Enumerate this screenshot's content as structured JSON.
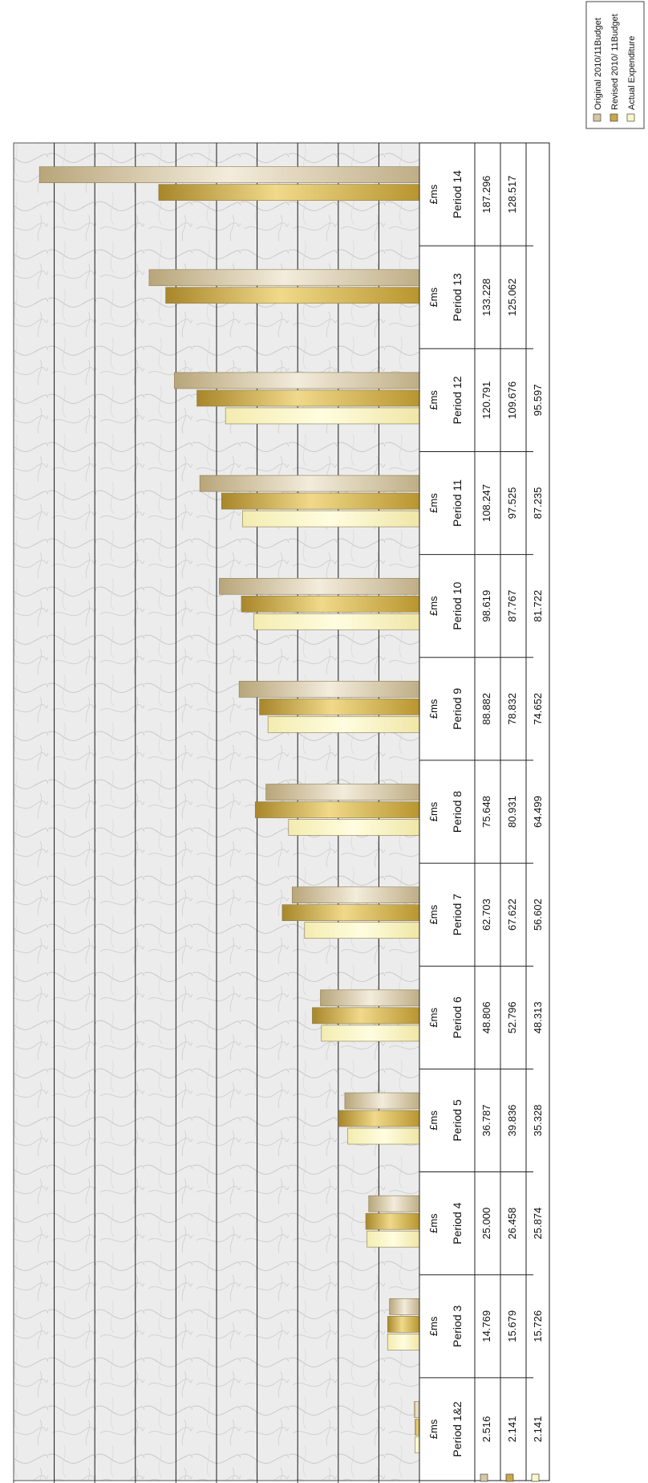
{
  "chart_data": {
    "type": "bar",
    "categories": [
      "Period 1&2",
      "Period 3",
      "Period 4",
      "Period 5",
      "Period 6",
      "Period 7",
      "Period 8",
      "Period 9",
      "Period 10",
      "Period 11",
      "Period 12",
      "Period 13",
      "Period 14"
    ],
    "unit_label": "£ms",
    "ylim": [
      0,
      200
    ],
    "y_ticks": [
      "0.000",
      "20.000",
      "40.000",
      "60.000",
      "80.000",
      "100.000",
      "120.000",
      "140.000",
      "160.000",
      "180.000",
      "200.000"
    ],
    "grid": true,
    "legend_position": "top-right",
    "series": [
      {
        "name": "Original 2010/11 Budget",
        "legend_label": "Original 2010/11Budget",
        "color": "#d7c7a1",
        "values": [
          2.516,
          14.769,
          25.0,
          36.787,
          48.806,
          62.703,
          75.648,
          88.882,
          98.619,
          108.247,
          120.791,
          133.228,
          187.296
        ],
        "labels": [
          "2.516",
          "14.769",
          "25.000",
          "36.787",
          "48.806",
          "62.703",
          "75.648",
          "88.882",
          "98.619",
          "108.247",
          "120.791",
          "133.228",
          "187.296"
        ]
      },
      {
        "name": "Revised 2010/11 Budget",
        "legend_label": "Revised 2010/ 11Budget",
        "color": "#c9a84a",
        "values": [
          2.141,
          15.679,
          26.458,
          39.836,
          52.796,
          67.622,
          80.931,
          78.832,
          87.767,
          97.525,
          109.676,
          125.062,
          128.517
        ],
        "labels": [
          "2.141",
          "15.679",
          "26.458",
          "39.836",
          "52.796",
          "67.622",
          "80.931",
          "78.832",
          "87.767",
          "97.525",
          "109.676",
          "125.062",
          "128.517"
        ]
      },
      {
        "name": "Actual Expenditure",
        "legend_label": "Actual Expenditure",
        "color": "#fbf6c7",
        "values": [
          2.141,
          15.726,
          25.874,
          35.328,
          48.313,
          56.602,
          64.499,
          74.652,
          81.722,
          87.235,
          95.597,
          null,
          null
        ],
        "labels": [
          "2.141",
          "15.726",
          "25.874",
          "35.328",
          "48.313",
          "56.602",
          "64.499",
          "74.652",
          "81.722",
          "87.235",
          "95.597",
          "",
          ""
        ]
      }
    ]
  }
}
